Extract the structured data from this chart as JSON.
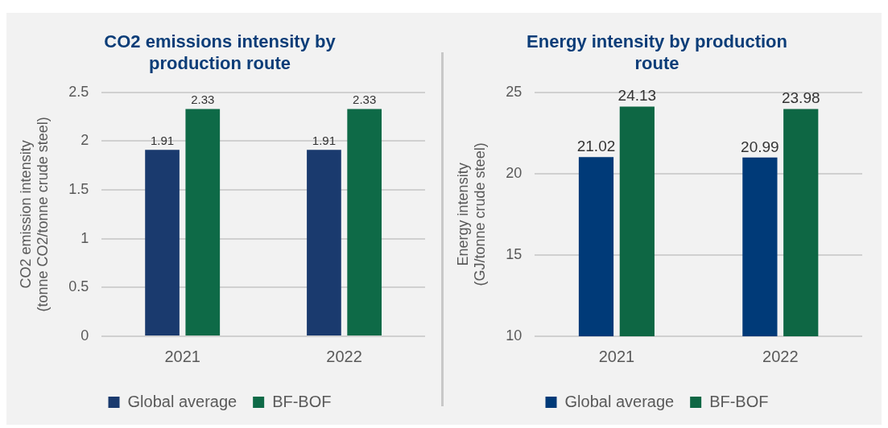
{
  "chart_data": [
    {
      "type": "bar",
      "title": "CO2 emissions intensity by\nproduction route",
      "ylabel": "CO2 emission intensity\n(tonne CO2/tonne crude steel)",
      "categories": [
        "2021",
        "2022"
      ],
      "series": [
        {
          "name": "Global average",
          "color": "#1a3a6e",
          "values": [
            1.91,
            1.91
          ]
        },
        {
          "name": "BF-BOF",
          "color": "#0e6a47",
          "values": [
            2.33,
            2.33
          ]
        }
      ],
      "ylim": [
        0,
        2.5
      ],
      "yticks": [
        0,
        0.5,
        1,
        1.5,
        2,
        2.5
      ],
      "grid": "y",
      "legend": "bottom",
      "data_labels": true
    },
    {
      "type": "bar",
      "title": "Energy intensity by production\nroute",
      "ylabel": "Energy intensity\n(GJ/tonne crude steel)",
      "categories": [
        "2021",
        "2022"
      ],
      "series": [
        {
          "name": "Global average",
          "color": "#003a78",
          "values": [
            21.02,
            20.99
          ]
        },
        {
          "name": "BF-BOF",
          "color": "#0e6744",
          "values": [
            24.13,
            23.98
          ]
        }
      ],
      "ylim": [
        10,
        25
      ],
      "yticks": [
        10,
        15,
        20,
        25
      ],
      "grid": "y",
      "legend": "bottom",
      "data_labels": true
    }
  ]
}
